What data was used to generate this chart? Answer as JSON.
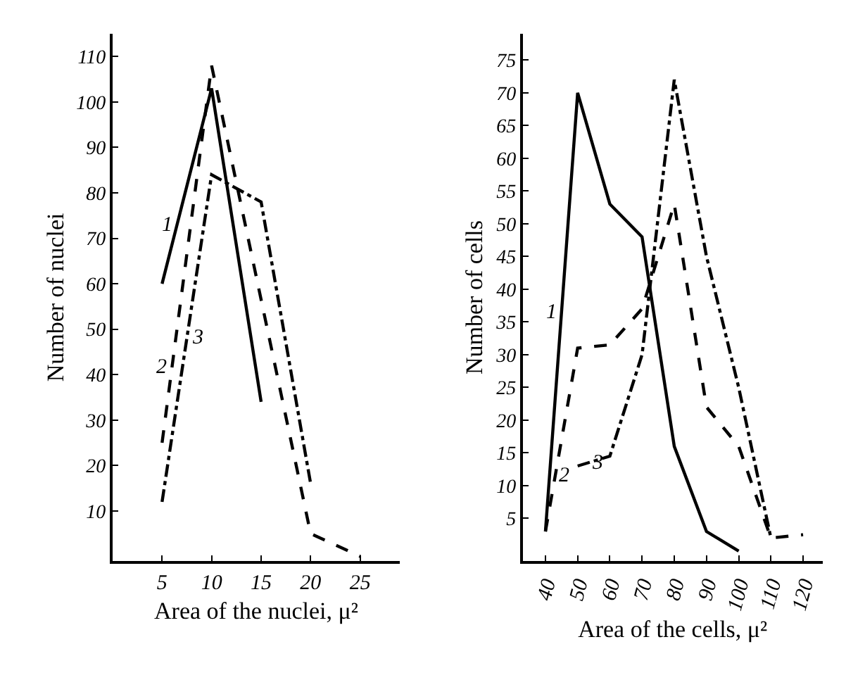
{
  "chart_data": [
    {
      "type": "line",
      "xlabel": "Area of the nuclei, μ²",
      "ylabel": "Number of nuclei",
      "xlim": [
        0,
        29
      ],
      "ylim": [
        -1,
        115
      ],
      "xticks": [
        5,
        10,
        15,
        20,
        25
      ],
      "yticks": [
        10,
        20,
        30,
        40,
        50,
        60,
        70,
        80,
        90,
        100,
        110
      ],
      "marker": "none",
      "series": [
        {
          "name": "1",
          "color": "#000000",
          "line_style": "solid",
          "x": [
            5,
            10,
            15
          ],
          "values": [
            60,
            103,
            34
          ]
        },
        {
          "name": "2",
          "color": "#000000",
          "line_style": "dashed",
          "x": [
            5,
            10,
            20,
            25
          ],
          "values": [
            25,
            108,
            5,
            0
          ]
        },
        {
          "name": "3",
          "color": "#000000",
          "line_style": "dashdot",
          "x": [
            5,
            10,
            15,
            20
          ],
          "values": [
            12,
            84,
            78,
            16
          ]
        }
      ]
    },
    {
      "type": "line",
      "xlabel": "Area of the cells, μ²",
      "ylabel": "Number of cells",
      "xlim": [
        33,
        126
      ],
      "ylim": [
        -1.5,
        79
      ],
      "xticks": [
        40,
        50,
        60,
        70,
        80,
        90,
        100,
        110,
        120
      ],
      "yticks": [
        5,
        10,
        15,
        20,
        25,
        30,
        35,
        40,
        45,
        50,
        55,
        60,
        65,
        70,
        75
      ],
      "marker": "none",
      "series": [
        {
          "name": "1",
          "color": "#000000",
          "line_style": "solid",
          "x": [
            40,
            50,
            60,
            70,
            80,
            90,
            100
          ],
          "values": [
            3,
            70,
            53,
            48,
            16,
            3,
            0
          ]
        },
        {
          "name": "2",
          "color": "#000000",
          "line_style": "dashed",
          "x": [
            40,
            50,
            60,
            70,
            80,
            90,
            100,
            110,
            120
          ],
          "values": [
            3,
            31,
            31.5,
            37,
            53,
            22,
            16,
            2,
            2.5
          ]
        },
        {
          "name": "3",
          "color": "#000000",
          "line_style": "dashdot",
          "x": [
            50,
            60,
            70,
            80,
            90,
            100,
            110
          ],
          "values": [
            13,
            14.5,
            30,
            72,
            45,
            25,
            2
          ]
        }
      ]
    }
  ]
}
